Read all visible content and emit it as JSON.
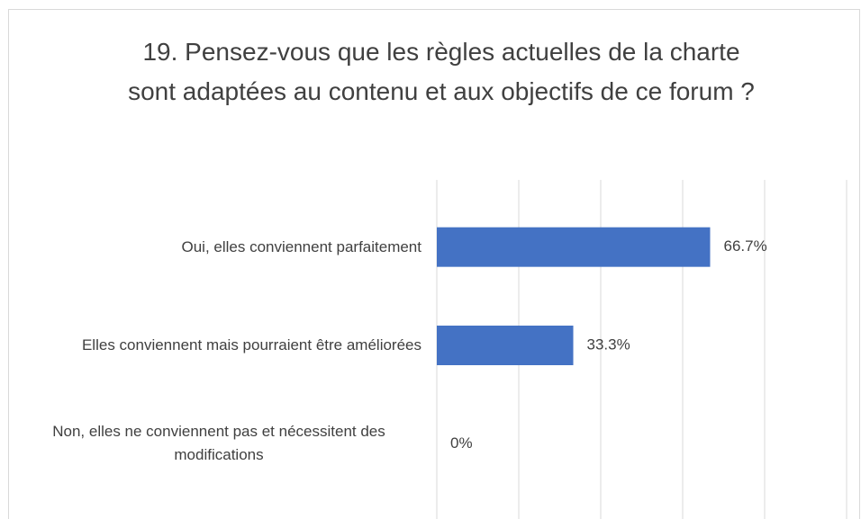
{
  "chart_data": {
    "type": "bar",
    "orientation": "horizontal",
    "title": "19. Pensez-vous que les règles actuelles de la charte sont adaptées au contenu et aux objectifs de ce forum ?",
    "categories": [
      "Oui, elles conviennent parfaitement",
      "Elles conviennent mais pourraient être améliorées",
      "Non, elles ne conviennent pas et nécessitent des modifications"
    ],
    "values": [
      66.7,
      33.3,
      0
    ],
    "value_labels": [
      "66.7%",
      "33.3%",
      "0%"
    ],
    "color": "#4472c4",
    "xlim": [
      0,
      100
    ],
    "xticks": [
      0,
      20,
      40,
      60,
      80,
      100
    ],
    "grid": true
  }
}
